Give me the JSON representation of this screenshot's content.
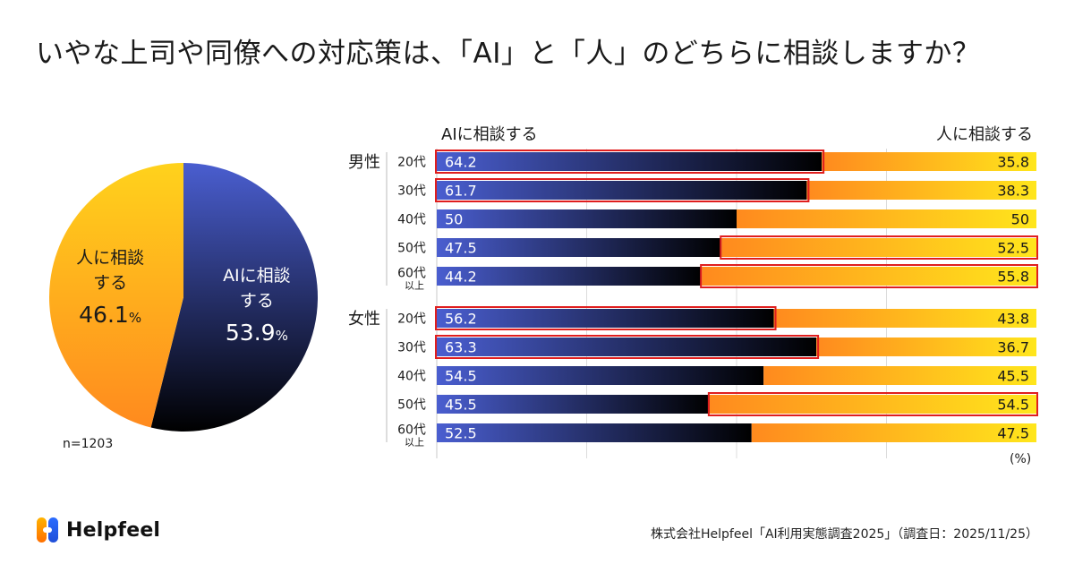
{
  "title": "いやな上司や同僚への対応策は、「AI」と「人」のどちらに相談しますか？",
  "colors": {
    "ai_start": "#4a5ed0",
    "ai_end": "#000000",
    "human_start": "#ff8a1e",
    "human_end": "#ffe61c",
    "highlight": "#e01e1e",
    "grid": "#dddddd"
  },
  "chart_data": [
    {
      "type": "pie",
      "title": "",
      "slices": [
        {
          "name": "AIに相談する",
          "label_lines": [
            "AIに相談",
            "する"
          ],
          "value": 53.9,
          "value_text": "53.9",
          "unit": "%"
        },
        {
          "name": "人に相談する",
          "label_lines": [
            "人に相談",
            "する"
          ],
          "value": 46.1,
          "value_text": "46.1",
          "unit": "%"
        }
      ],
      "note": "n=1203"
    },
    {
      "type": "bar",
      "orientation": "horizontal",
      "stacked": true,
      "series_names": [
        "AIに相談する",
        "人に相談する"
      ],
      "xlim": [
        0,
        100
      ],
      "unit_label": "(%)",
      "groups": [
        {
          "name": "男性",
          "rows": [
            {
              "age": "20代",
              "ai": 64.2,
              "ai_text": "64.2",
              "human": 35.8,
              "human_text": "35.8",
              "highlight": "ai"
            },
            {
              "age": "30代",
              "ai": 61.7,
              "ai_text": "61.7",
              "human": 38.3,
              "human_text": "38.3",
              "highlight": "ai"
            },
            {
              "age": "40代",
              "ai": 50,
              "ai_text": "50",
              "human": 50,
              "human_text": "50",
              "highlight": "none"
            },
            {
              "age": "50代",
              "ai": 47.5,
              "ai_text": "47.5",
              "human": 52.5,
              "human_text": "52.5",
              "highlight": "human"
            },
            {
              "age": "60代",
              "age_sub": "以上",
              "ai": 44.2,
              "ai_text": "44.2",
              "human": 55.8,
              "human_text": "55.8",
              "highlight": "human"
            }
          ]
        },
        {
          "name": "女性",
          "rows": [
            {
              "age": "20代",
              "ai": 56.2,
              "ai_text": "56.2",
              "human": 43.8,
              "human_text": "43.8",
              "highlight": "ai"
            },
            {
              "age": "30代",
              "ai": 63.3,
              "ai_text": "63.3",
              "human": 36.7,
              "human_text": "36.7",
              "highlight": "ai"
            },
            {
              "age": "40代",
              "ai": 54.5,
              "ai_text": "54.5",
              "human": 45.5,
              "human_text": "45.5",
              "highlight": "none"
            },
            {
              "age": "50代",
              "ai": 45.5,
              "ai_text": "45.5",
              "human": 54.5,
              "human_text": "54.5",
              "highlight": "human"
            },
            {
              "age": "60代",
              "age_sub": "以上",
              "ai": 52.5,
              "ai_text": "52.5",
              "human": 47.5,
              "human_text": "47.5",
              "highlight": "none"
            }
          ]
        }
      ]
    }
  ],
  "logo": {
    "name": "Helpfeel"
  },
  "source": "株式会社Helpfeel「AI利用実態調査2025」（調査日：2025/11/25）"
}
